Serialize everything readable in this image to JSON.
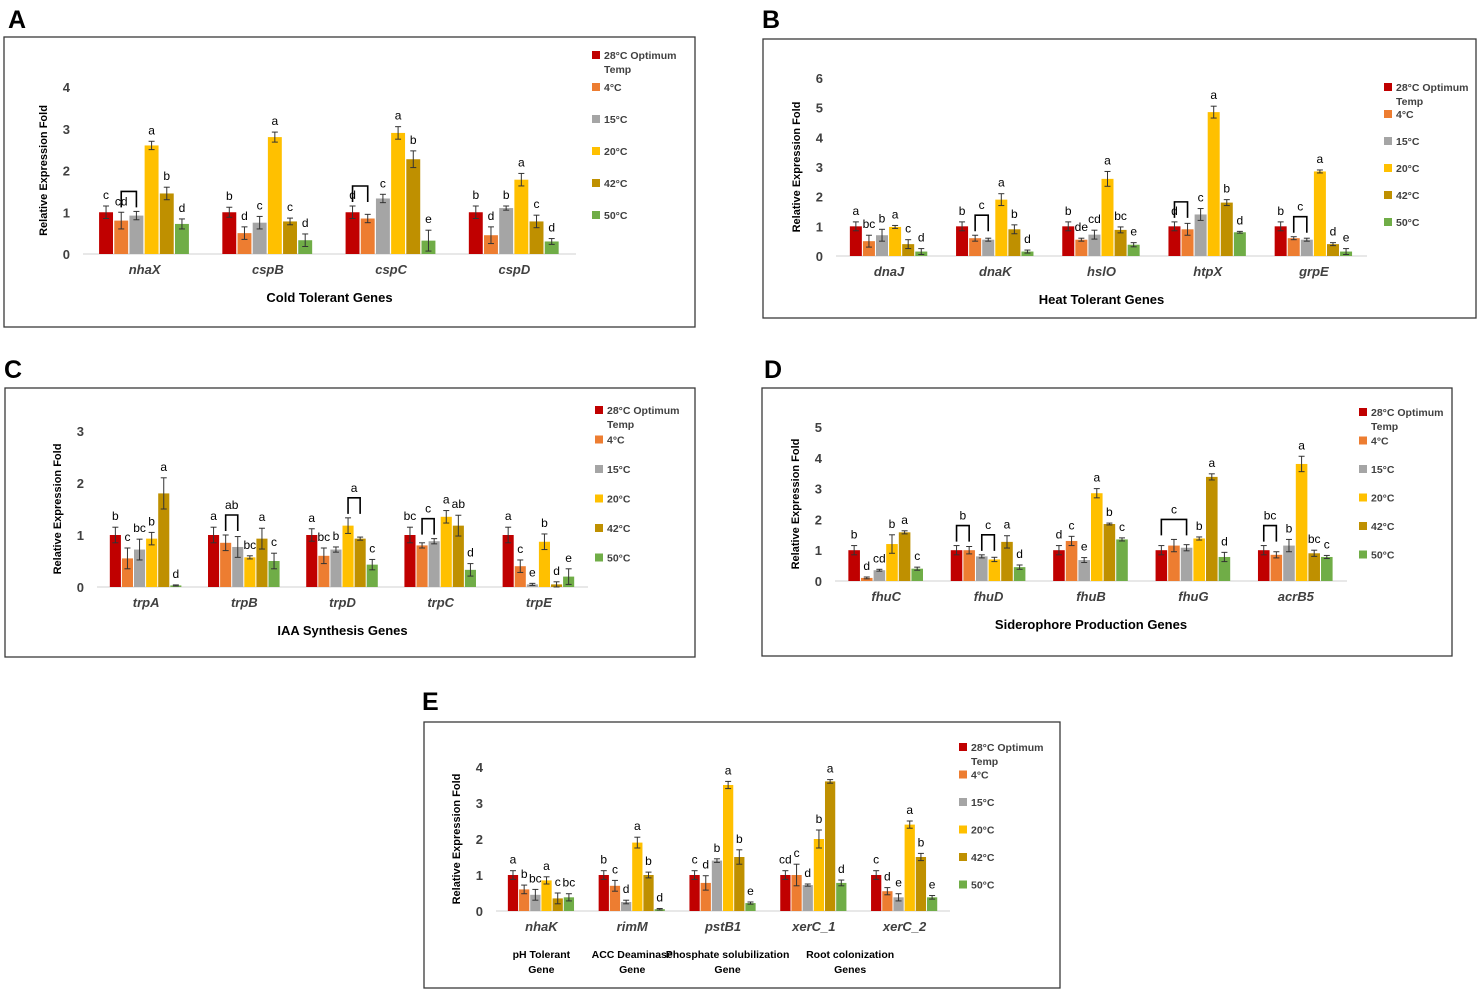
{
  "legend_labels": [
    "28°C Optimum Temp",
    "4°C",
    "15°C",
    "20°C",
    "42°C",
    "50°C"
  ],
  "series_colors": [
    "#c00000",
    "#ed7d31",
    "#a5a5a5",
    "#ffc000",
    "#bf9000",
    "#70ad47"
  ],
  "chart_data": [
    {
      "panel": "A",
      "type": "bar",
      "title": "",
      "xlabel": "Cold Tolerant Genes",
      "ylabel": "Relative Expression Fold",
      "ylim": [
        0,
        4
      ],
      "yticks": [
        "0",
        "1",
        "2",
        "3",
        "4"
      ],
      "categories": [
        "nhaX",
        "cspB",
        "cspC",
        "cspD"
      ],
      "category_sublabels": [],
      "series": [
        {
          "name": "28°C Optimum Temp",
          "values": [
            1.0,
            1.0,
            1.0,
            1.0
          ],
          "errors": [
            0.15,
            0.12,
            0.15,
            0.15
          ]
        },
        {
          "name": "4°C",
          "values": [
            0.8,
            0.5,
            0.85,
            0.45
          ],
          "errors": [
            0.2,
            0.15,
            0.1,
            0.2
          ]
        },
        {
          "name": "15°C",
          "values": [
            0.92,
            0.75,
            1.33,
            1.1
          ],
          "errors": [
            0.1,
            0.15,
            0.1,
            0.05
          ]
        },
        {
          "name": "20°C",
          "values": [
            2.6,
            2.8,
            2.9,
            1.78
          ],
          "errors": [
            0.1,
            0.12,
            0.15,
            0.15
          ]
        },
        {
          "name": "42°C",
          "values": [
            1.45,
            0.78,
            2.27,
            0.78
          ],
          "errors": [
            0.15,
            0.08,
            0.2,
            0.15
          ]
        },
        {
          "name": "50°C",
          "values": [
            0.72,
            0.33,
            0.32,
            0.3
          ],
          "errors": [
            0.12,
            0.15,
            0.25,
            0.07
          ]
        }
      ],
      "letters": [
        [
          "c",
          "cd",
          "",
          "a",
          "b",
          "d"
        ],
        [
          "b",
          "d",
          "c",
          "a",
          "c",
          "d"
        ],
        [
          "d",
          "",
          "c",
          "a",
          "b",
          "e"
        ],
        [
          "b",
          "d",
          "b",
          "a",
          "c",
          "d"
        ]
      ],
      "brackets": [
        {
          "cat": 0,
          "from": 1,
          "to": 2
        },
        {
          "cat": 2,
          "from": 0,
          "to": 1
        }
      ]
    },
    {
      "panel": "B",
      "type": "bar",
      "title": "",
      "xlabel": "Heat Tolerant Genes",
      "ylabel": "Relative Expression Fold",
      "ylim": [
        0,
        6
      ],
      "yticks": [
        "0",
        "1",
        "2",
        "3",
        "4",
        "5",
        "6"
      ],
      "categories": [
        "dnaJ",
        "dnaK",
        "hslO",
        "htpX",
        "grpE"
      ],
      "category_sublabels": [],
      "series": [
        {
          "name": "28°C Optimum Temp",
          "values": [
            1.0,
            1.0,
            1.0,
            1.0,
            1.0
          ],
          "errors": [
            0.15,
            0.15,
            0.15,
            0.15,
            0.15
          ]
        },
        {
          "name": "4°C",
          "values": [
            0.5,
            0.6,
            0.55,
            0.9,
            0.6
          ],
          "errors": [
            0.2,
            0.1,
            0.05,
            0.2,
            0.05
          ]
        },
        {
          "name": "15°C",
          "values": [
            0.7,
            0.55,
            0.72,
            1.4,
            0.55
          ],
          "errors": [
            0.2,
            0.05,
            0.15,
            0.2,
            0.05
          ]
        },
        {
          "name": "20°C",
          "values": [
            0.98,
            1.9,
            2.6,
            4.85,
            2.85
          ],
          "errors": [
            0.05,
            0.2,
            0.25,
            0.2,
            0.05
          ]
        },
        {
          "name": "42°C",
          "values": [
            0.4,
            0.9,
            0.88,
            1.8,
            0.4
          ],
          "errors": [
            0.15,
            0.15,
            0.1,
            0.1,
            0.05
          ]
        },
        {
          "name": "50°C",
          "values": [
            0.15,
            0.15,
            0.38,
            0.8,
            0.15
          ],
          "errors": [
            0.1,
            0.05,
            0.07,
            0.03,
            0.1
          ]
        }
      ],
      "letters": [
        [
          "a",
          "bc",
          "b",
          "a",
          "c",
          "d"
        ],
        [
          "b",
          "",
          "",
          "a",
          "b",
          "d"
        ],
        [
          "b",
          "de",
          "cd",
          "a",
          "bc",
          "e"
        ],
        [
          "d",
          "",
          "c",
          "a",
          "b",
          "d"
        ],
        [
          "b",
          "",
          "",
          "a",
          "d",
          "e"
        ]
      ],
      "brackets": [
        {
          "cat": 1,
          "from": 1,
          "to": 2,
          "label": "c"
        },
        {
          "cat": 3,
          "from": 0,
          "to": 1
        },
        {
          "cat": 4,
          "from": 1,
          "to": 2,
          "label": "c"
        }
      ]
    },
    {
      "panel": "C",
      "type": "bar",
      "title": "",
      "xlabel": "IAA Synthesis Genes",
      "ylabel": "Relative Expression Fold",
      "ylim": [
        0,
        3
      ],
      "yticks": [
        "0",
        "1",
        "2",
        "3"
      ],
      "categories": [
        "trpA",
        "trpB",
        "trpD",
        "trpC",
        "trpE"
      ],
      "category_sublabels": [],
      "series": [
        {
          "name": "28°C Optimum Temp",
          "values": [
            1.0,
            1.0,
            1.0,
            1.0,
            1.0
          ],
          "errors": [
            0.15,
            0.15,
            0.12,
            0.15,
            0.15
          ]
        },
        {
          "name": "4°C",
          "values": [
            0.55,
            0.85,
            0.6,
            0.8,
            0.4
          ],
          "errors": [
            0.2,
            0.15,
            0.15,
            0.05,
            0.12
          ]
        },
        {
          "name": "15°C",
          "values": [
            0.72,
            0.77,
            0.72,
            0.88,
            0.05
          ],
          "errors": [
            0.2,
            0.2,
            0.05,
            0.05,
            0.02
          ]
        },
        {
          "name": "20°C",
          "values": [
            0.93,
            0.57,
            1.18,
            1.35,
            0.87
          ],
          "errors": [
            0.12,
            0.03,
            0.15,
            0.12,
            0.15
          ]
        },
        {
          "name": "42°C",
          "values": [
            1.8,
            0.93,
            0.93,
            1.18,
            0.05
          ],
          "errors": [
            0.3,
            0.2,
            0.03,
            0.2,
            0.05
          ]
        },
        {
          "name": "50°C",
          "values": [
            0.03,
            0.5,
            0.43,
            0.33,
            0.2
          ],
          "errors": [
            0.01,
            0.15,
            0.1,
            0.12,
            0.15
          ]
        }
      ],
      "letters": [
        [
          "b",
          "c",
          "bc",
          "b",
          "a",
          "d"
        ],
        [
          "a",
          "",
          "",
          "bc",
          "a",
          "c"
        ],
        [
          "a",
          "bc",
          "b",
          "",
          "",
          "c"
        ],
        [
          "bc",
          "",
          "",
          "a",
          "ab",
          "d"
        ],
        [
          "a",
          "c",
          "e",
          "b",
          "d",
          "e"
        ]
      ],
      "brackets": [
        {
          "cat": 1,
          "from": 1,
          "to": 2,
          "label": "ab"
        },
        {
          "cat": 2,
          "from": 3,
          "to": 4,
          "label": "a"
        },
        {
          "cat": 3,
          "from": 1,
          "to": 2,
          "label": "c"
        }
      ]
    },
    {
      "panel": "D",
      "type": "bar",
      "title": "",
      "xlabel": "Siderophore Production  Genes",
      "ylabel": "Relative Expression Fold",
      "ylim": [
        0,
        5
      ],
      "yticks": [
        "0",
        "1",
        "2",
        "3",
        "4",
        "5"
      ],
      "categories": [
        "fhuC",
        "fhuD",
        "fhuB",
        "fhuG",
        "acrB5"
      ],
      "category_sublabels": [],
      "series": [
        {
          "name": "28°C Optimum Temp",
          "values": [
            1.0,
            1.0,
            1.0,
            1.0,
            1.0
          ],
          "errors": [
            0.15,
            0.15,
            0.15,
            0.15,
            0.15
          ]
        },
        {
          "name": "4°C",
          "values": [
            0.1,
            1.0,
            1.3,
            1.15,
            0.85
          ],
          "errors": [
            0.03,
            0.12,
            0.15,
            0.2,
            0.1
          ]
        },
        {
          "name": "15°C",
          "values": [
            0.35,
            0.8,
            0.68,
            1.08,
            1.15
          ],
          "errors": [
            0.03,
            0.05,
            0.08,
            0.1,
            0.2
          ]
        },
        {
          "name": "20°C",
          "values": [
            1.2,
            0.7,
            2.85,
            1.38,
            3.8
          ],
          "errors": [
            0.3,
            0.07,
            0.15,
            0.05,
            0.25
          ]
        },
        {
          "name": "42°C",
          "values": [
            1.58,
            1.27,
            1.85,
            3.38,
            0.9
          ],
          "errors": [
            0.05,
            0.2,
            0.03,
            0.1,
            0.1
          ]
        },
        {
          "name": "50°C",
          "values": [
            0.4,
            0.45,
            1.35,
            0.78,
            0.78
          ],
          "errors": [
            0.05,
            0.07,
            0.05,
            0.15,
            0.05
          ]
        }
      ],
      "letters": [
        [
          "b",
          "d",
          "cd",
          "b",
          "a",
          "c"
        ],
        [
          "",
          "",
          "",
          "",
          "a",
          "d"
        ],
        [
          "d",
          "c",
          "e",
          "a",
          "b",
          "c"
        ],
        [
          "",
          "",
          "",
          "b",
          "a",
          "d"
        ],
        [
          "",
          "",
          "b",
          "a",
          "bc",
          "c"
        ]
      ],
      "brackets": [
        {
          "cat": 1,
          "from": 0,
          "to": 1,
          "label": "b"
        },
        {
          "cat": 1,
          "from": 2,
          "to": 3,
          "label": "c"
        },
        {
          "cat": 3,
          "from": 0,
          "to": 2,
          "label": "c"
        },
        {
          "cat": 4,
          "from": 0,
          "to": 1,
          "label": "bc"
        }
      ]
    },
    {
      "panel": "E",
      "type": "bar",
      "title": "",
      "xlabel": "",
      "ylabel": "Relative Expression Fold",
      "ylim": [
        0,
        4
      ],
      "yticks": [
        "0",
        "1",
        "2",
        "3",
        "4"
      ],
      "categories": [
        "nhaK",
        "rimM",
        "pstB1",
        "xerC_1",
        "xerC_2"
      ],
      "category_sublabels": [
        "pH Tolerant\nGene",
        "ACC Deaminase\nGene",
        "Phosphate solubilization\nGene",
        "Root colonization\nGenes"
      ],
      "series": [
        {
          "name": "28°C Optimum Temp",
          "values": [
            1.0,
            1.0,
            1.0,
            1.0,
            1.0
          ],
          "errors": [
            0.12,
            0.12,
            0.12,
            0.12,
            0.12
          ]
        },
        {
          "name": "4°C",
          "values": [
            0.6,
            0.7,
            0.78,
            1.0,
            0.55
          ],
          "errors": [
            0.12,
            0.15,
            0.2,
            0.3,
            0.1
          ]
        },
        {
          "name": "15°C",
          "values": [
            0.45,
            0.25,
            1.4,
            0.72,
            0.38
          ],
          "errors": [
            0.15,
            0.05,
            0.05,
            0.03,
            0.1
          ]
        },
        {
          "name": "20°C",
          "values": [
            0.85,
            1.9,
            3.5,
            2.0,
            2.4
          ],
          "errors": [
            0.1,
            0.15,
            0.1,
            0.25,
            0.1
          ]
        },
        {
          "name": "42°C",
          "values": [
            0.35,
            1.0,
            1.5,
            3.6,
            1.5
          ],
          "errors": [
            0.15,
            0.08,
            0.2,
            0.05,
            0.1
          ]
        },
        {
          "name": "50°C",
          "values": [
            0.38,
            0.05,
            0.22,
            0.78,
            0.38
          ],
          "errors": [
            0.1,
            0.02,
            0.03,
            0.08,
            0.05
          ]
        }
      ],
      "letters": [
        [
          "a",
          "b",
          "bc",
          "a",
          "c",
          "bc"
        ],
        [
          "b",
          "c",
          "d",
          "a",
          "b",
          "d"
        ],
        [
          "c",
          "d",
          "b",
          "a",
          "b",
          "e"
        ],
        [
          "cd",
          "c",
          "d",
          "b",
          "a",
          "d"
        ],
        [
          "c",
          "d",
          "e",
          "a",
          "b",
          "e"
        ]
      ],
      "brackets": []
    }
  ]
}
